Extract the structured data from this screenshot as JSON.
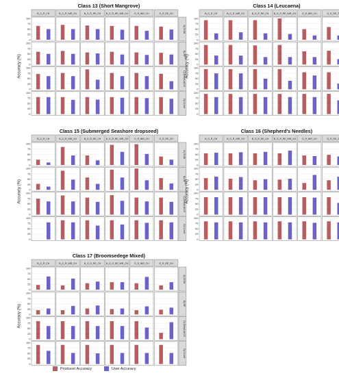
{
  "colors": {
    "producer": "#b85c5f",
    "user": "#6a62c6",
    "strip_bg": "#d9d9d9",
    "panel_bg": "#ffffff",
    "grid": "#e6e6e6",
    "border": "#7f7f7f"
  },
  "legend": {
    "items": [
      {
        "label": "Producer Accuracy",
        "color": "#b85c5f"
      },
      {
        "label": "User Accuracy",
        "color": "#6a62c6"
      }
    ]
  },
  "chart_data": [
    {
      "type": "bar",
      "title": "Class 13 (Short Mangrove)",
      "ylabel": "Accuracy (%)",
      "ylim": [
        0,
        100
      ],
      "yticks": [
        0,
        25,
        50,
        75,
        100
      ],
      "column_labels": [
        "B_G_R_CH",
        "B_G_R_NIR_CH",
        "B_G_R_RE_CH",
        "B_G_R_RE_NIR_CH",
        "G_R_NIR_CH",
        "G_R_RE_CH"
      ],
      "row_labels": [
        "A) SVM",
        "B) RF",
        "C) DeepLabV3",
        "D) U-net"
      ],
      "series": [
        {
          "name": "Producer Accuracy",
          "values": [
            [
              65,
              70,
              67,
              65,
              65,
              62
            ],
            [
              60,
              64,
              57,
              60,
              57,
              55
            ],
            [
              72,
              77,
              94,
              77,
              77,
              73
            ],
            [
              80,
              80,
              80,
              80,
              80,
              80
            ]
          ]
        },
        {
          "name": "User Accuracy",
          "values": [
            [
              50,
              50,
              50,
              47,
              42,
              48
            ],
            [
              50,
              50,
              52,
              47,
              45,
              47
            ],
            [
              62,
              62,
              45,
              62,
              62,
              38
            ],
            [
              80,
              67,
              68,
              77,
              75,
              72
            ]
          ]
        }
      ]
    },
    {
      "type": "bar",
      "title": "Class 14 (Leucaena)",
      "ylabel": "Accuracy (%)",
      "ylim": [
        0,
        100
      ],
      "yticks": [
        0,
        25,
        50,
        75,
        100
      ],
      "column_labels": [
        "B_G_R_CH",
        "B_G_R_NIR_CH",
        "B_G_R_RE_CH",
        "B_G_R_RE_NIR_CH",
        "G_R_NIR_CH",
        "G_R_RE_CH"
      ],
      "row_labels": [
        "A) SVM",
        "B) RF",
        "C) DeepLabV3",
        "D) U-net"
      ],
      "series": [
        {
          "name": "Producer Accuracy",
          "values": [
            [
              92,
              92,
              92,
              100,
              50,
              60
            ],
            [
              92,
              92,
              90,
              92,
              62,
              65
            ],
            [
              95,
              95,
              95,
              95,
              80,
              80
            ],
            [
              95,
              95,
              95,
              95,
              95,
              95
            ]
          ]
        },
        {
          "name": "User Accuracy",
          "values": [
            [
              30,
              35,
              30,
              27,
              20,
              20
            ],
            [
              42,
              42,
              35,
              35,
              35,
              25
            ],
            [
              75,
              75,
              50,
              40,
              65,
              27
            ],
            [
              80,
              80,
              80,
              80,
              80,
              65
            ]
          ]
        }
      ]
    },
    {
      "type": "bar",
      "title": "Class 15 (Submerged Seashore dropseed)",
      "ylabel": "Accuracy (%)",
      "ylim": [
        0,
        100
      ],
      "yticks": [
        0,
        25,
        50,
        75,
        100
      ],
      "column_labels": [
        "B_G_R_CH",
        "B_G_R_NIR_CH",
        "B_G_R_RE_CH",
        "B_G_R_RE_NIR_CH",
        "G_R_NIR_CH",
        "G_R_RE_CH"
      ],
      "row_labels": [
        "A) SVM",
        "B) RF",
        "C) DeepLabV3",
        "D) U-net"
      ],
      "series": [
        {
          "name": "Producer Accuracy",
          "values": [
            [
              25,
              85,
              45,
              95,
              98,
              40
            ],
            [
              28,
              90,
              58,
              95,
              100,
              55
            ],
            [
              75,
              90,
              80,
              92,
              80,
              80
            ],
            [
              0,
              90,
              90,
              90,
              90,
              90
            ]
          ]
        },
        {
          "name": "User Accuracy",
          "values": [
            [
              12,
              45,
              22,
              62,
              52,
              25
            ],
            [
              15,
              48,
              28,
              58,
              45,
              30
            ],
            [
              62,
              62,
              60,
              65,
              62,
              60
            ],
            [
              80,
              80,
              65,
              70,
              78,
              80
            ]
          ]
        }
      ]
    },
    {
      "type": "bar",
      "title": "Class 16 (Shepherd's Needles)",
      "ylabel": "Accuracy (%)",
      "ylim": [
        0,
        100
      ],
      "yticks": [
        0,
        25,
        50,
        75,
        100
      ],
      "column_labels": [
        "B_G_R_CH",
        "B_G_R_NIR_CH",
        "B_G_R_RE_CH",
        "B_G_R_RE_NIR_CH",
        "G_R_NIR_CH",
        "G_R_RE_CH"
      ],
      "row_labels": [
        "A) SVM",
        "B) RF",
        "C) DeepLabV3",
        "D) U-net"
      ],
      "series": [
        {
          "name": "Producer Accuracy",
          "values": [
            [
              55,
              55,
              55,
              55,
              45,
              48
            ],
            [
              55,
              52,
              45,
              48,
              32,
              45
            ],
            [
              82,
              82,
              82,
              82,
              82,
              82
            ],
            [
              85,
              85,
              85,
              85,
              85,
              85
            ]
          ]
        },
        {
          "name": "User Accuracy",
          "values": [
            [
              58,
              60,
              62,
              68,
              42,
              40
            ],
            [
              62,
              60,
              50,
              52,
              70,
              62
            ],
            [
              82,
              82,
              82,
              82,
              80,
              55
            ],
            [
              80,
              80,
              80,
              80,
              78,
              80
            ]
          ]
        }
      ]
    },
    {
      "type": "bar",
      "title": "Class 17 (Broomsedege Mixed)",
      "ylabel": "Accuracy (%)",
      "ylim": [
        0,
        100
      ],
      "yticks": [
        0,
        25,
        50,
        75,
        100
      ],
      "column_labels": [
        "B_G_R_CH",
        "B_G_R_NIR_CH",
        "B_G_R_RE_CH",
        "B_G_R_RE_NIR_CH",
        "G_R_NIR_CH",
        "G_R_RE_CH"
      ],
      "row_labels": [
        "A) SVM",
        "B) RF",
        "C) DeepLabV3",
        "D) U-net"
      ],
      "series": [
        {
          "name": "Producer Accuracy",
          "values": [
            [
              22,
              20,
              30,
              35,
              30,
              20
            ],
            [
              20,
              20,
              28,
              25,
              20,
              22
            ],
            [
              85,
              85,
              85,
              85,
              85,
              30
            ],
            [
              90,
              90,
              90,
              90,
              90,
              90
            ]
          ]
        },
        {
          "name": "User Accuracy",
          "values": [
            [
              62,
              52,
              38,
              35,
              60,
              35
            ],
            [
              28,
              40,
              42,
              28,
              38,
              32
            ],
            [
              62,
              62,
              62,
              62,
              55,
              80
            ],
            [
              62,
              52,
              50,
              52,
              52,
              52
            ]
          ]
        }
      ]
    }
  ]
}
